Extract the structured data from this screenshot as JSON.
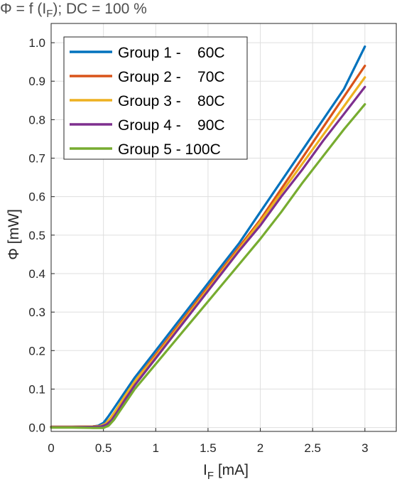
{
  "chart_data": {
    "type": "line",
    "title": {
      "prefix": "Φ = f (I",
      "sub": "F",
      "suffix": "); DC = 100 %"
    },
    "xlabel": {
      "main": "I",
      "sub": "F",
      "rest": " [mA]"
    },
    "ylabel": "Φ [mW]",
    "xlim": [
      0,
      3.3
    ],
    "ylim": [
      -0.01,
      1.05
    ],
    "xticks": [
      0,
      0.5,
      1,
      1.5,
      2,
      2.5,
      3
    ],
    "xtick_labels": [
      "0",
      "0.5",
      "1",
      "1.5",
      "2",
      "2.5",
      "3"
    ],
    "yticks": [
      0,
      0.1,
      0.2,
      0.3,
      0.4,
      0.5,
      0.6,
      0.7,
      0.8,
      0.9,
      1.0
    ],
    "ytick_labels": [
      "0.0",
      "0.1",
      "0.2",
      "0.3",
      "0.4",
      "0.5",
      "0.6",
      "0.7",
      "0.8",
      "0.9",
      "1.0"
    ],
    "grid": true,
    "legend_position": "top-left",
    "series": [
      {
        "name": "Group 1 -    60C",
        "color": "#0072bd",
        "x": [
          0,
          0.2,
          0.4,
          0.45,
          0.5,
          0.55,
          0.6,
          0.7,
          0.8,
          1.0,
          1.2,
          1.4,
          1.6,
          1.8,
          2.0,
          2.2,
          2.4,
          2.6,
          2.8,
          3.0
        ],
        "y": [
          0.002,
          0.002,
          0.003,
          0.005,
          0.012,
          0.03,
          0.05,
          0.09,
          0.13,
          0.2,
          0.27,
          0.34,
          0.41,
          0.48,
          0.56,
          0.64,
          0.72,
          0.8,
          0.88,
          0.99
        ]
      },
      {
        "name": "Group 2 -    70C",
        "color": "#d95319",
        "x": [
          0,
          0.2,
          0.4,
          0.47,
          0.52,
          0.57,
          0.62,
          0.7,
          0.8,
          1.0,
          1.2,
          1.4,
          1.6,
          1.8,
          2.0,
          2.2,
          2.4,
          2.6,
          2.8,
          3.0
        ],
        "y": [
          0.002,
          0.002,
          0.003,
          0.004,
          0.01,
          0.025,
          0.045,
          0.08,
          0.12,
          0.19,
          0.26,
          0.33,
          0.4,
          0.47,
          0.54,
          0.62,
          0.7,
          0.78,
          0.86,
          0.94
        ]
      },
      {
        "name": "Group 3 -    80C",
        "color": "#edb120",
        "x": [
          0,
          0.2,
          0.4,
          0.47,
          0.52,
          0.57,
          0.62,
          0.7,
          0.8,
          1.0,
          1.2,
          1.4,
          1.6,
          1.8,
          2.0,
          2.2,
          2.4,
          2.6,
          2.8,
          3.0
        ],
        "y": [
          0.002,
          0.002,
          0.003,
          0.004,
          0.01,
          0.025,
          0.045,
          0.08,
          0.12,
          0.185,
          0.255,
          0.325,
          0.395,
          0.465,
          0.535,
          0.61,
          0.685,
          0.76,
          0.835,
          0.91
        ]
      },
      {
        "name": "Group 4 -    90C",
        "color": "#7e2f8e",
        "x": [
          0,
          0.2,
          0.4,
          0.48,
          0.53,
          0.58,
          0.63,
          0.7,
          0.8,
          1.0,
          1.2,
          1.4,
          1.6,
          1.8,
          2.0,
          2.2,
          2.4,
          2.6,
          2.8,
          3.0
        ],
        "y": [
          0.001,
          0.001,
          0.002,
          0.003,
          0.008,
          0.02,
          0.04,
          0.07,
          0.11,
          0.18,
          0.25,
          0.32,
          0.39,
          0.46,
          0.525,
          0.6,
          0.67,
          0.745,
          0.815,
          0.885
        ]
      },
      {
        "name": "Group 5 - 100C",
        "color": "#77ac30",
        "x": [
          0,
          0.2,
          0.4,
          0.5,
          0.55,
          0.6,
          0.65,
          0.7,
          0.8,
          1.0,
          1.2,
          1.4,
          1.6,
          1.8,
          2.0,
          2.2,
          2.4,
          2.6,
          2.8,
          3.0
        ],
        "y": [
          0.0,
          0.0,
          -0.001,
          -0.001,
          0.005,
          0.02,
          0.04,
          0.06,
          0.1,
          0.165,
          0.23,
          0.295,
          0.36,
          0.425,
          0.49,
          0.56,
          0.635,
          0.705,
          0.775,
          0.84
        ]
      }
    ]
  }
}
